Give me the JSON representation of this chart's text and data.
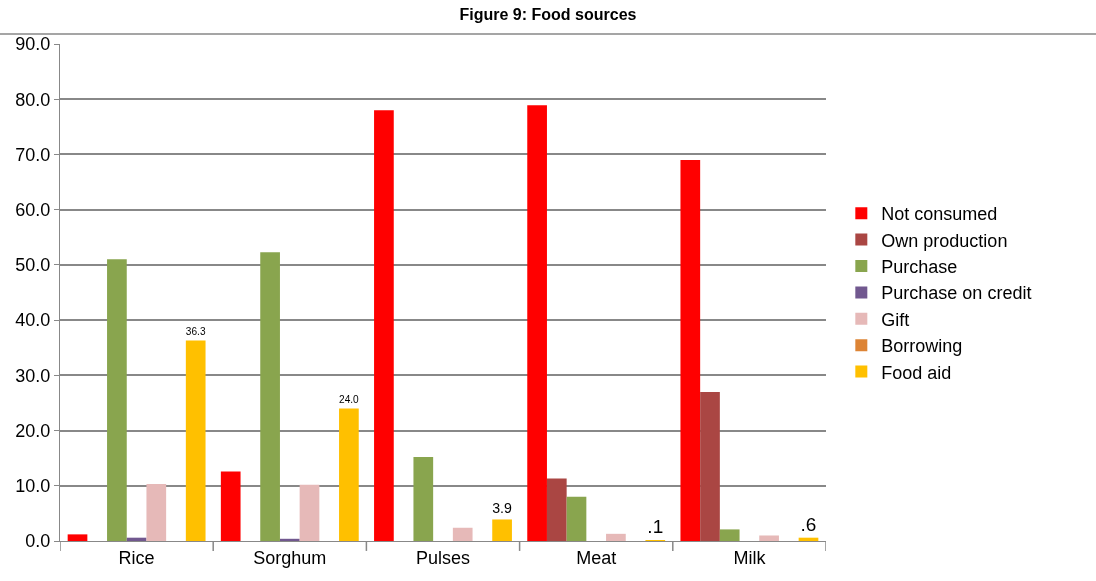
{
  "chart_data": {
    "type": "bar",
    "title": "Figure 9: Food sources",
    "categories": [
      "Rice",
      "Sorghum",
      "Pulses",
      "Meat",
      "Milk"
    ],
    "series": [
      {
        "name": "Not consumed",
        "color": "#ff0000",
        "values": [
          1.2,
          12.6,
          78.0,
          78.9,
          69.0
        ]
      },
      {
        "name": "Own production",
        "color": "#aa4643",
        "values": [
          0,
          0,
          0,
          11.3,
          27.0
        ]
      },
      {
        "name": "Purchase",
        "color": "#89a54e",
        "values": [
          51.0,
          52.3,
          15.2,
          8.0,
          2.1
        ]
      },
      {
        "name": "Purchase on credit",
        "color": "#71588f",
        "values": [
          0.6,
          0.4,
          0,
          0,
          0
        ]
      },
      {
        "name": "Gift",
        "color": "#e6b9b8",
        "values": [
          10.3,
          10.2,
          2.4,
          1.3,
          1.0
        ]
      },
      {
        "name": "Borrowing",
        "color": "#dd8435",
        "values": [
          0,
          0,
          0,
          0,
          0
        ]
      },
      {
        "name": "Food aid",
        "color": "#ffc000",
        "values": [
          36.3,
          24.0,
          3.9,
          0.1,
          0.6
        ],
        "value_labels": [
          "36.3",
          "24.0",
          "3.9",
          ".1",
          ".6"
        ]
      }
    ],
    "ylim": [
      0,
      90
    ],
    "yticks": [
      {
        "value": 0,
        "label": "0.0"
      },
      {
        "value": 10,
        "label": "10.0"
      },
      {
        "value": 20,
        "label": "20.0"
      },
      {
        "value": 30,
        "label": "30.0"
      },
      {
        "value": 40,
        "label": "40.0"
      },
      {
        "value": 50,
        "label": "50.0"
      },
      {
        "value": 60,
        "label": "60.0"
      },
      {
        "value": 70,
        "label": "70.0"
      },
      {
        "value": 80,
        "label": "80.0"
      },
      {
        "value": 90,
        "label": "90.0"
      }
    ],
    "grid": "y",
    "legend": "right"
  }
}
